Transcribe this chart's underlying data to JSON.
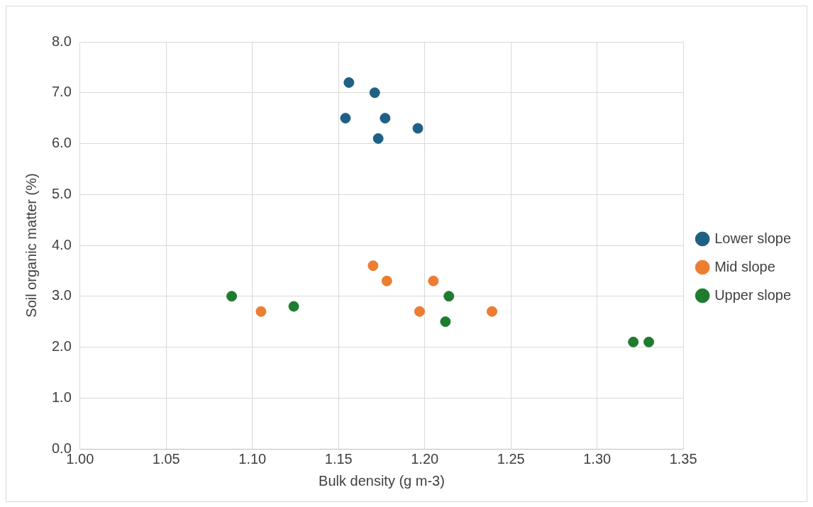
{
  "chart_data": {
    "type": "scatter",
    "xlabel": "Bulk density (g m-3)",
    "ylabel": "Soil organic matter (%)",
    "xlim": [
      1.0,
      1.35
    ],
    "xticks": [
      {
        "value": 1.0,
        "label": "1.00"
      },
      {
        "value": 1.05,
        "label": "1.05"
      },
      {
        "value": 1.1,
        "label": "1.10"
      },
      {
        "value": 1.15,
        "label": "1.15"
      },
      {
        "value": 1.2,
        "label": "1.20"
      },
      {
        "value": 1.25,
        "label": "1.25"
      },
      {
        "value": 1.3,
        "label": "1.30"
      },
      {
        "value": 1.35,
        "label": "1.35"
      }
    ],
    "ylim": [
      0,
      8
    ],
    "yticks": [
      {
        "value": 0,
        "label": "0.0"
      },
      {
        "value": 1,
        "label": "1.0"
      },
      {
        "value": 2,
        "label": "2.0"
      },
      {
        "value": 3,
        "label": "3.0"
      },
      {
        "value": 4,
        "label": "4.0"
      },
      {
        "value": 5,
        "label": "5.0"
      },
      {
        "value": 6,
        "label": "6.0"
      },
      {
        "value": 7,
        "label": "7.0"
      },
      {
        "value": 8,
        "label": "8.0"
      }
    ],
    "grid": true,
    "legend": "right",
    "marker": "circle",
    "series": [
      {
        "name": "Lower slope",
        "color": "#1f6085",
        "x": [
          1.156,
          1.171,
          1.154,
          1.177,
          1.173,
          1.196
        ],
        "values": [
          7.2,
          7.0,
          6.5,
          6.5,
          6.1,
          6.3
        ]
      },
      {
        "name": "Mid slope",
        "color": "#ed7d31",
        "x": [
          1.17,
          1.178,
          1.205,
          1.105,
          1.197,
          1.239
        ],
        "values": [
          3.6,
          3.3,
          3.3,
          2.7,
          2.7,
          2.7
        ]
      },
      {
        "name": "Upper slope",
        "color": "#1e7b2f",
        "x": [
          1.088,
          1.124,
          1.214,
          1.212,
          1.321,
          1.33
        ],
        "values": [
          3.0,
          2.8,
          3.0,
          2.5,
          2.1,
          2.1
        ]
      }
    ]
  }
}
